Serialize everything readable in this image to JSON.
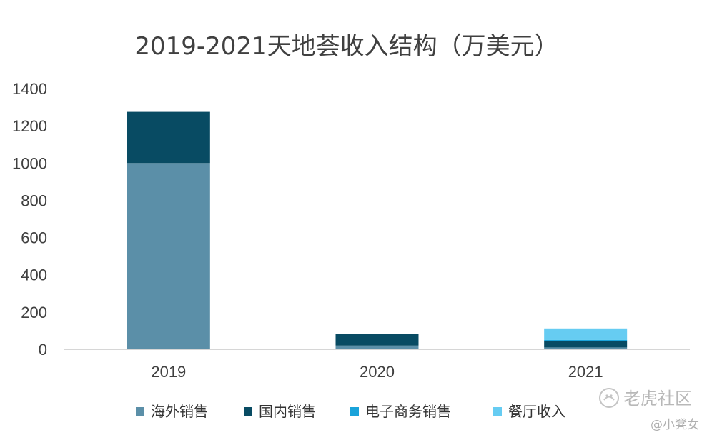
{
  "chart_data": {
    "type": "bar",
    "stacked": true,
    "title": "2019-2021天地荟收入结构（万美元）",
    "categories": [
      "2019",
      "2020",
      "2021"
    ],
    "series": [
      {
        "name": "海外销售",
        "color": "#5b8fa8",
        "values": [
          1000,
          20,
          10
        ]
      },
      {
        "name": "国内销售",
        "color": "#084b63",
        "values": [
          275,
          62,
          35
        ]
      },
      {
        "name": "电子商务销售",
        "color": "#1aa3da",
        "values": [
          0,
          0,
          5
        ]
      },
      {
        "name": "餐厅收入",
        "color": "#66ccf2",
        "values": [
          0,
          0,
          62
        ]
      }
    ],
    "yticks": [
      "0",
      "200",
      "400",
      "600",
      "800",
      "1000",
      "1200",
      "1400"
    ],
    "ylim": [
      0,
      1400
    ],
    "grid": false,
    "legend_position": "bottom"
  },
  "watermark": {
    "brand": "老虎社区",
    "user": "@小凳女"
  }
}
